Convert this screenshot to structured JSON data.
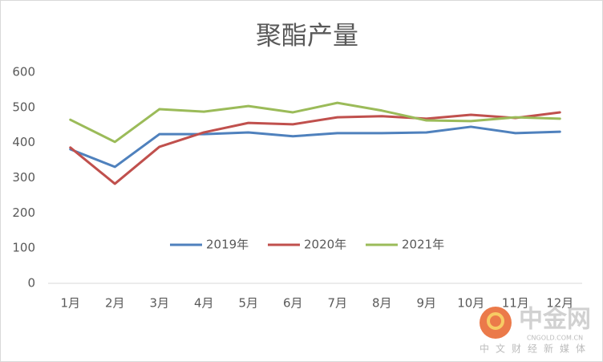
{
  "chart_data": {
    "type": "line",
    "title": "聚酯产量",
    "categories": [
      "1月",
      "2月",
      "3月",
      "4月",
      "5月",
      "6月",
      "7月",
      "8月",
      "9月",
      "10月",
      "11月",
      "12月"
    ],
    "series": [
      {
        "name": "2019年",
        "color": "#4f81bd",
        "values": [
          381,
          331,
          424,
          424,
          429,
          418,
          427,
          427,
          429,
          445,
          427,
          431
        ]
      },
      {
        "name": "2020年",
        "color": "#c0504d",
        "values": [
          386,
          283,
          388,
          429,
          456,
          452,
          472,
          475,
          468,
          479,
          470,
          486
        ]
      },
      {
        "name": "2021年",
        "color": "#9bbb59",
        "values": [
          465,
          402,
          495,
          488,
          504,
          486,
          513,
          491,
          463,
          461,
          472,
          468
        ]
      }
    ],
    "ylim": [
      0,
      600
    ],
    "yticks": [
      0,
      100,
      200,
      300,
      400,
      500,
      600
    ],
    "grid": false,
    "legend": "center"
  },
  "watermark": {
    "name": "中金网",
    "site": "CNGOLD.COM.CN",
    "slogan": "中文财经新媒体"
  }
}
